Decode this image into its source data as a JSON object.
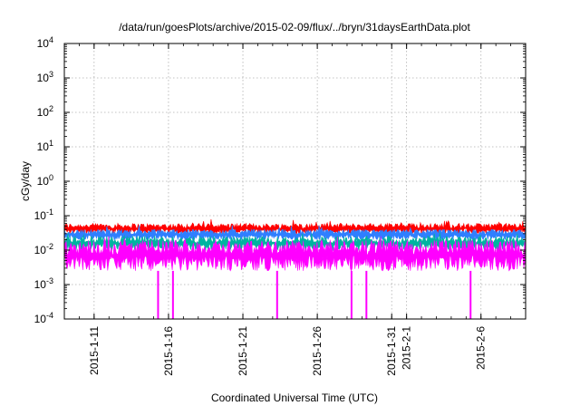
{
  "chart_data": {
    "type": "area",
    "title": "/data/run/goesPlots/archive/2015-02-09/flux/../bryn/31daysEarthData.plot",
    "xlabel": "Coordinated Universal Time (UTC)",
    "ylabel": "cGy/day",
    "y_scale": "log",
    "ylim": [
      0.0001,
      10000
    ],
    "xlim": [
      "2015-01-09",
      "2015-02-09"
    ],
    "y_ticks": [
      {
        "base": "10",
        "exp": "-4"
      },
      {
        "base": "10",
        "exp": "-3"
      },
      {
        "base": "10",
        "exp": "-2"
      },
      {
        "base": "10",
        "exp": "-1"
      },
      {
        "base": "10",
        "exp": "0"
      },
      {
        "base": "10",
        "exp": "1"
      },
      {
        "base": "10",
        "exp": "2"
      },
      {
        "base": "10",
        "exp": "3"
      },
      {
        "base": "10",
        "exp": "4"
      }
    ],
    "x_ticks": [
      "2015-1-11",
      "2015-1-16",
      "2015-1-21",
      "2015-1-26",
      "2015-1-31",
      "2015-2-1",
      "2015-2-6"
    ],
    "grid": true,
    "legend": "none",
    "series": [
      {
        "color": "#ff0000",
        "typical_range": [
          0.03,
          0.06
        ]
      },
      {
        "color": "#2f7fff",
        "typical_range": [
          0.02,
          0.04
        ]
      },
      {
        "color": "#00b3a0",
        "typical_range": [
          0.01,
          0.025
        ]
      },
      {
        "color": "#ff00ff",
        "typical_range": [
          0.0025,
          0.02
        ],
        "dropouts": [
          "2015-01-15",
          "2015-01-16",
          "2015-01-23",
          "2015-01-28",
          "2015-01-29",
          "2015-02-05"
        ]
      }
    ]
  }
}
